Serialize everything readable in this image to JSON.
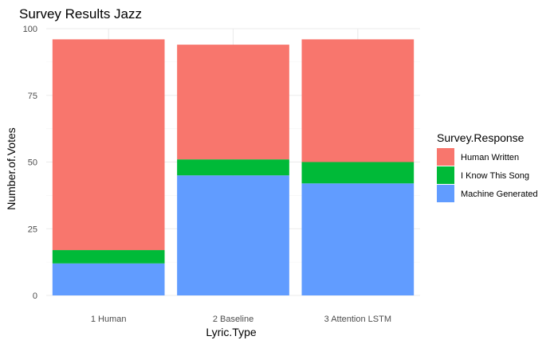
{
  "chart_data": {
    "type": "bar",
    "stacked": true,
    "title": "Survey Results Jazz",
    "xlabel": "Lyric.Type",
    "ylabel": "Number.of.Votes",
    "categories": [
      "1 Human",
      "2 Baseline",
      "3 Attention LSTM"
    ],
    "ylim": [
      0,
      100
    ],
    "yticks": [
      0,
      25,
      50,
      75,
      100
    ],
    "grid": true,
    "legend": {
      "title": "Survey.Response",
      "position": "right",
      "entries": [
        "Human Written",
        "I Know This Song",
        "Machine Generated"
      ]
    },
    "series": [
      {
        "name": "Machine Generated",
        "color": "#619CFF",
        "values": [
          12,
          45,
          42
        ]
      },
      {
        "name": "I Know This Song",
        "color": "#00BA38",
        "values": [
          5,
          6,
          8
        ]
      },
      {
        "name": "Human Written",
        "color": "#F8766D",
        "values": [
          79,
          43,
          46
        ]
      }
    ]
  }
}
